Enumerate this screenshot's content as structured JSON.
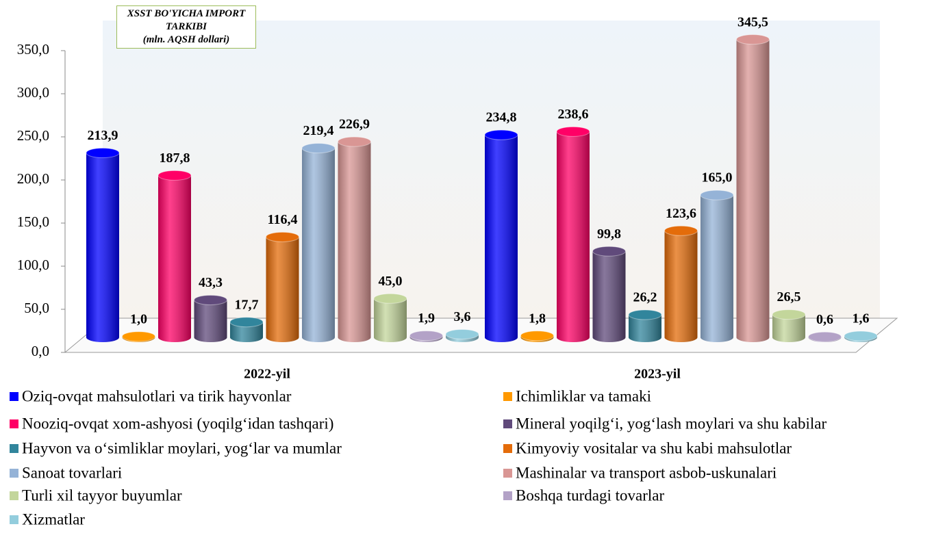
{
  "chart_data": {
    "type": "bar",
    "title": "XSST BO'YICHA IMPORT TARKIBI",
    "subtitle": "(mln. AQSH dollari)",
    "categories": [
      "2022-yil",
      "2023-yil"
    ],
    "ylim": [
      0,
      350
    ],
    "yticks": [
      {
        "value": 0,
        "label": "0,0"
      },
      {
        "value": 50,
        "label": "50,0"
      },
      {
        "value": 100,
        "label": "100,0"
      },
      {
        "value": 150,
        "label": "150,0"
      },
      {
        "value": 200,
        "label": "200,0"
      },
      {
        "value": 250,
        "label": "250,0"
      },
      {
        "value": 300,
        "label": "300,0"
      },
      {
        "value": 350,
        "label": "350,0"
      }
    ],
    "series": [
      {
        "name": "Oziq-ovqat mahsulotlari va tirik hayvonlar",
        "color": "#0000ff",
        "values": [
          213.9,
          234.8
        ],
        "value_labels": [
          "213,9",
          "234,8"
        ]
      },
      {
        "name": "Ichimliklar va tamaki",
        "color": "#ff9900",
        "values": [
          1.0,
          1.8
        ],
        "value_labels": [
          "1,0",
          "1,8"
        ]
      },
      {
        "name": "Nooziq-ovqat xom-ashyosi (yoqilg‘idan tashqari)",
        "color": "#ff0066",
        "values": [
          187.8,
          238.6
        ],
        "value_labels": [
          "187,8",
          "238,6"
        ]
      },
      {
        "name": "Mineral yoqilg‘i, yog‘lash moylari va shu kabilar",
        "color": "#604a7b",
        "values": [
          43.3,
          99.8
        ],
        "value_labels": [
          "43,3",
          "99,8"
        ]
      },
      {
        "name": "Hayvon va o‘simliklar moylari, yog‘lar va mumlar",
        "color": "#31859c",
        "values": [
          17.7,
          26.2
        ],
        "value_labels": [
          "17,7",
          "26,2"
        ]
      },
      {
        "name": "Kimyoviy vositalar va shu kabi mahsulotlar",
        "color": "#e46c0a",
        "values": [
          116.4,
          123.6
        ],
        "value_labels": [
          "116,4",
          "123,6"
        ]
      },
      {
        "name": "Sanoat tovarlari",
        "color": "#95b3d7",
        "values": [
          219.4,
          165.0
        ],
        "value_labels": [
          "219,4",
          "165,0"
        ]
      },
      {
        "name": "Mashinalar va transport asbob-uskunalari",
        "color": "#d99694",
        "values": [
          226.9,
          345.5
        ],
        "value_labels": [
          "226,9",
          "345,5"
        ]
      },
      {
        "name": "Turli xil tayyor buyumlar",
        "color": "#c3d69b",
        "values": [
          45.0,
          26.5
        ],
        "value_labels": [
          "45,0",
          "26,5"
        ]
      },
      {
        "name": "Boshqa turdagi tovarlar",
        "color": "#b3a2c7",
        "values": [
          1.9,
          0.6
        ],
        "value_labels": [
          "1,9",
          "0,6"
        ]
      },
      {
        "name": "Xizmatlar",
        "color": "#93cddd",
        "values": [
          3.6,
          1.6
        ],
        "value_labels": [
          "3,6",
          "1,6"
        ]
      }
    ]
  }
}
